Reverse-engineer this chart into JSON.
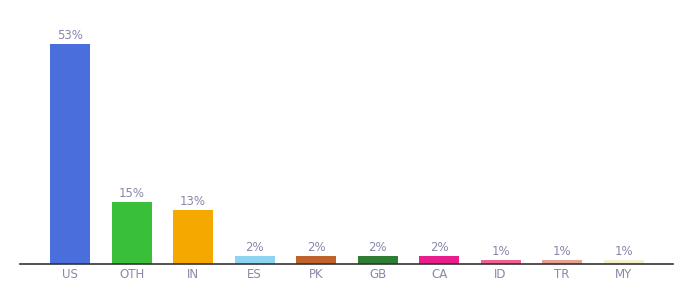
{
  "categories": [
    "US",
    "OTH",
    "IN",
    "ES",
    "PK",
    "GB",
    "CA",
    "ID",
    "TR",
    "MY"
  ],
  "values": [
    53,
    15,
    13,
    2,
    2,
    2,
    2,
    1,
    1,
    1
  ],
  "bar_colors": [
    "#4a6fdc",
    "#3abf3a",
    "#f5a800",
    "#8dd4f0",
    "#c0622b",
    "#2e7d32",
    "#e91e8c",
    "#f06090",
    "#e8a090",
    "#f5f0cc"
  ],
  "labels": [
    "53%",
    "15%",
    "13%",
    "2%",
    "2%",
    "2%",
    "2%",
    "1%",
    "1%",
    "1%"
  ],
  "ylim": [
    0,
    60
  ],
  "background_color": "#ffffff",
  "label_fontsize": 8.5,
  "tick_fontsize": 8.5,
  "label_color": "#8888aa"
}
